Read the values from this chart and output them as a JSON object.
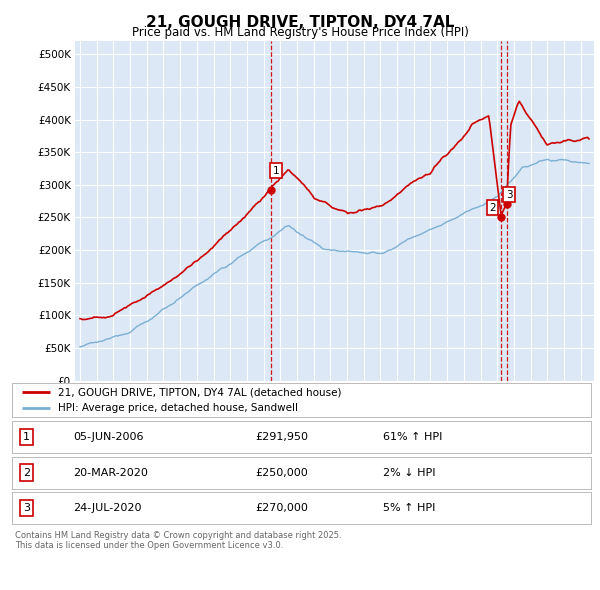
{
  "title": "21, GOUGH DRIVE, TIPTON, DY4 7AL",
  "subtitle": "Price paid vs. HM Land Registry's House Price Index (HPI)",
  "legend_line1": "21, GOUGH DRIVE, TIPTON, DY4 7AL (detached house)",
  "legend_line2": "HPI: Average price, detached house, Sandwell",
  "footer1": "Contains HM Land Registry data © Crown copyright and database right 2025.",
  "footer2": "This data is licensed under the Open Government Licence v3.0.",
  "table": [
    [
      "1",
      "05-JUN-2006",
      "£291,950",
      "61% ↑ HPI"
    ],
    [
      "2",
      "20-MAR-2020",
      "£250,000",
      "2% ↓ HPI"
    ],
    [
      "3",
      "24-JUL-2020",
      "£270,000",
      "5% ↑ HPI"
    ]
  ],
  "sale_color": "#cc0000",
  "hpi_color": "#7bafd4",
  "background_color": "#dce8f5",
  "grid_color": "#ffffff",
  "vline_color": "#cc0000",
  "ylim": [
    0,
    520000
  ],
  "yticks": [
    0,
    50000,
    100000,
    150000,
    200000,
    250000,
    300000,
    350000,
    400000,
    450000,
    500000
  ],
  "ytick_labels": [
    "£0",
    "£50K",
    "£100K",
    "£150K",
    "£200K",
    "£250K",
    "£300K",
    "£350K",
    "£400K",
    "£450K",
    "£500K"
  ],
  "sale_dates": [
    2006.43,
    2020.22,
    2020.56
  ],
  "sale_prices": [
    291950,
    250000,
    270000
  ],
  "sale_labels": [
    "1",
    "2",
    "3"
  ],
  "xstart": 1995,
  "xend": 2025
}
